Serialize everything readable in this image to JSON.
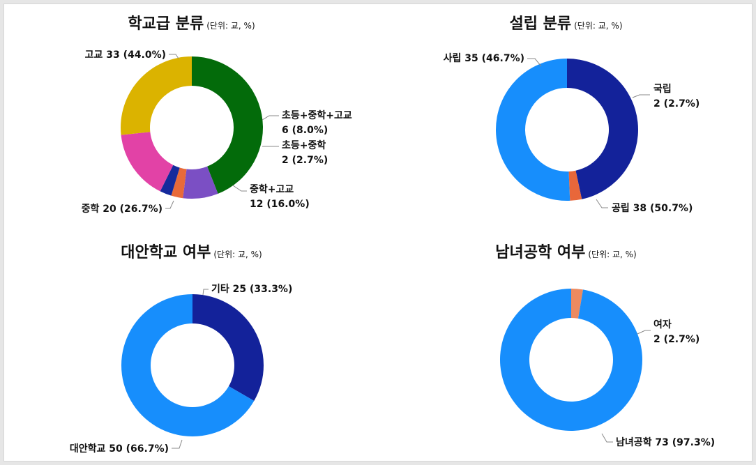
{
  "chart_data": [
    {
      "type": "pie",
      "title": "학교급 분류",
      "unit": "(단위: 교, %)",
      "slices": [
        {
          "name": "고교",
          "value": 33,
          "pct": "44.0%",
          "color": "#036b0a"
        },
        {
          "name": "초등+중학+고교",
          "value": 6,
          "pct": "8.0%",
          "color": "#7b4fc4"
        },
        {
          "name": "초등+중학",
          "value": 2,
          "pct": "2.7%",
          "color": "#e86a3a"
        },
        {
          "name": "",
          "value": 2,
          "pct": "",
          "color": "#152a9c"
        },
        {
          "name": "중학+고교",
          "value": 12,
          "pct": "16.0%",
          "color": "#e242a6"
        },
        {
          "name": "중학",
          "value": 20,
          "pct": "26.7%",
          "color": "#dbb300"
        }
      ]
    },
    {
      "type": "pie",
      "title": "설립 분류",
      "unit": "(단위: 교, %)",
      "slices": [
        {
          "name": "사립",
          "value": 35,
          "pct": "46.7%",
          "color": "#13229a"
        },
        {
          "name": "국립",
          "value": 2,
          "pct": "2.7%",
          "color": "#e8673a"
        },
        {
          "name": "공립",
          "value": 38,
          "pct": "50.7%",
          "color": "#178efc"
        }
      ]
    },
    {
      "type": "pie",
      "title": "대안학교 여부",
      "unit": "(단위: 교, %)",
      "slices": [
        {
          "name": "기타",
          "value": 25,
          "pct": "33.3%",
          "color": "#13229a"
        },
        {
          "name": "대안학교",
          "value": 50,
          "pct": "66.7%",
          "color": "#178efc"
        }
      ]
    },
    {
      "type": "pie",
      "title": "남녀공학 여부",
      "unit": "(단위: 교, %)",
      "slices": [
        {
          "name": "여자",
          "value": 2,
          "pct": "2.7%",
          "color": "#ec8a60"
        },
        {
          "name": "남녀공학",
          "value": 73,
          "pct": "97.3%",
          "color": "#178efc"
        }
      ]
    }
  ]
}
